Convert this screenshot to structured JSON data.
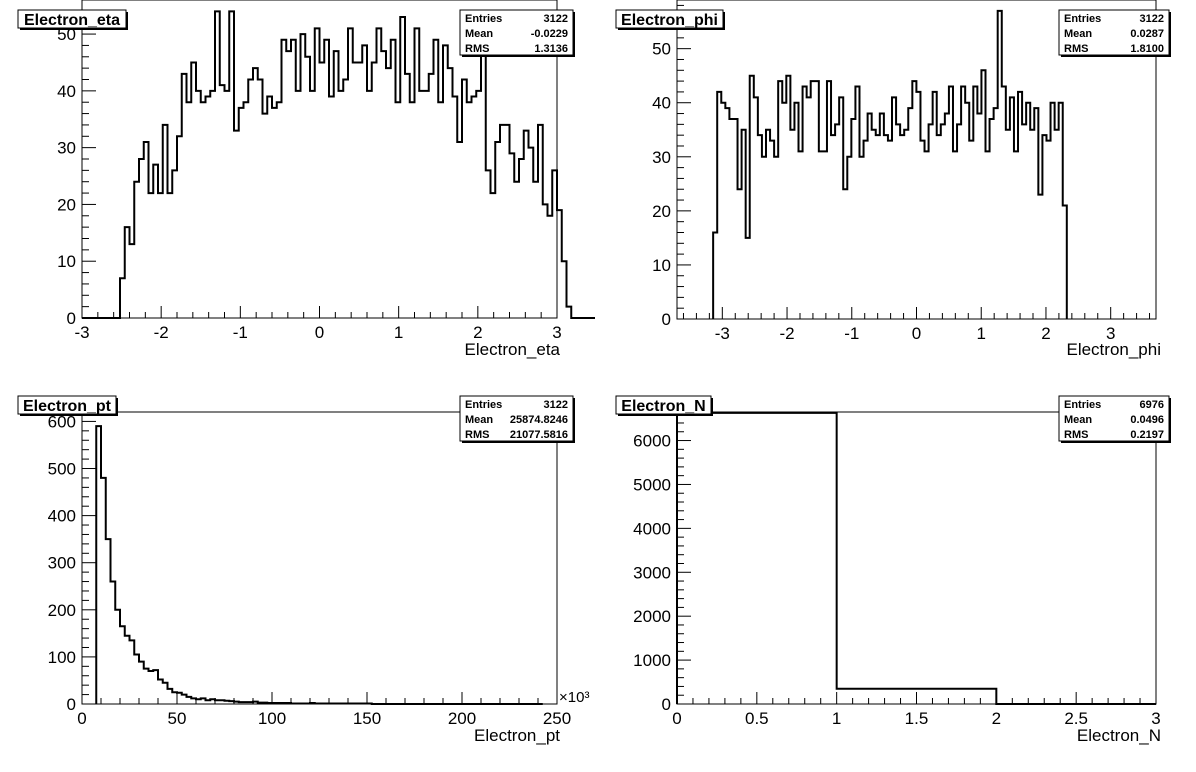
{
  "chart_data": [
    {
      "type": "bar",
      "title": "Electron_eta",
      "xlabel": "Electron_eta",
      "xlim": [
        -3,
        3
      ],
      "ylim": [
        0,
        56
      ],
      "xticks": [
        -3,
        -2,
        -1,
        0,
        1,
        2,
        3
      ],
      "yticks": [
        0,
        10,
        20,
        30,
        40,
        50
      ],
      "stats": [
        [
          "Entries",
          "3122"
        ],
        [
          "Mean",
          "-0.0229"
        ],
        [
          "RMS",
          "1.3136"
        ]
      ],
      "bin_start": -3,
      "bin_width": 0.06,
      "values": [
        0,
        0,
        0,
        0,
        0,
        0,
        0,
        0,
        7,
        16,
        13,
        24,
        28,
        31,
        22,
        27,
        22,
        34,
        22,
        26,
        32,
        43,
        38,
        45,
        40,
        38,
        39,
        40,
        54,
        41,
        40,
        54,
        33,
        37,
        38,
        42,
        44,
        42,
        36,
        39,
        37,
        38,
        49,
        47,
        49,
        40,
        50,
        46,
        40,
        51,
        45,
        49,
        39,
        47,
        40,
        42,
        51,
        45,
        45,
        48,
        40,
        45,
        51,
        47,
        44,
        49,
        38,
        53,
        43,
        38,
        51,
        40,
        40,
        43,
        49,
        38,
        48,
        44,
        39,
        31,
        42,
        38,
        39,
        40,
        51,
        26,
        22,
        31,
        34,
        34,
        29,
        24,
        28,
        33,
        30,
        24,
        34,
        20,
        18,
        26,
        19,
        10,
        2,
        0,
        0,
        0,
        0,
        0
      ]
    },
    {
      "type": "bar",
      "title": "Electron_phi",
      "xlabel": "Electron_phi",
      "xlim": [
        -3.7,
        3.7
      ],
      "ylim": [
        0,
        59
      ],
      "xticks": [
        -3,
        -2,
        -1,
        0,
        1,
        2,
        3
      ],
      "yticks": [
        0,
        10,
        20,
        30,
        40,
        50
      ],
      "stats": [
        [
          "Entries",
          "3122"
        ],
        [
          "Mean",
          "0.0287"
        ],
        [
          "RMS",
          "1.8100"
        ]
      ],
      "bin_start": -3.1416,
      "bin_width": 0.0628,
      "values": [
        16,
        42,
        40,
        39,
        37,
        37,
        24,
        35,
        15,
        45,
        41,
        34,
        30,
        35,
        33,
        30,
        44,
        40,
        45,
        35,
        40,
        31,
        43,
        41,
        44,
        44,
        31,
        31,
        44,
        34,
        36,
        41,
        24,
        30,
        37,
        43,
        30,
        33,
        38,
        35,
        34,
        38,
        34,
        33,
        41,
        36,
        34,
        35,
        39,
        44,
        42,
        33,
        31,
        36,
        42,
        34,
        36,
        38,
        43,
        31,
        36,
        43,
        40,
        33,
        43,
        38,
        46,
        31,
        37,
        39,
        57,
        43,
        35,
        41,
        31,
        42,
        36,
        40,
        35,
        39,
        23,
        34,
        33,
        40,
        35,
        40,
        21
      ]
    },
    {
      "type": "bar",
      "title": "Electron_pt",
      "xlabel": "Electron_pt",
      "x_multiplier_label": "×10³",
      "xlim": [
        0,
        250
      ],
      "ylim": [
        0,
        620
      ],
      "xticks": [
        0,
        50,
        100,
        150,
        200,
        250
      ],
      "yticks": [
        0,
        100,
        200,
        300,
        400,
        500,
        600
      ],
      "stats": [
        [
          "Entries",
          "3122"
        ],
        [
          "Mean",
          "25874.8246"
        ],
        [
          "RMS",
          "21077.5816"
        ]
      ],
      "bin_start": 7.5,
      "bin_width": 2.5,
      "values": [
        590,
        480,
        350,
        260,
        200,
        165,
        145,
        135,
        105,
        90,
        75,
        70,
        72,
        52,
        45,
        32,
        25,
        24,
        20,
        15,
        12,
        10,
        12,
        8,
        10,
        8,
        8,
        7,
        6,
        5,
        4,
        4,
        4,
        5,
        3,
        3,
        2,
        2,
        2,
        2,
        2,
        1,
        1,
        1,
        1,
        2,
        1,
        1,
        1,
        1,
        1,
        1,
        1,
        1,
        1,
        1,
        1,
        1,
        0,
        0,
        0,
        0,
        0,
        0,
        0,
        0,
        0,
        0,
        0,
        0,
        0,
        0,
        0,
        0,
        0,
        0,
        0,
        0,
        0,
        0,
        0,
        0,
        0,
        0,
        0,
        0,
        0,
        0,
        0,
        0,
        0,
        0,
        0,
        0
      ]
    },
    {
      "type": "bar",
      "title": "Electron_N",
      "xlabel": "Electron_N",
      "xlim": [
        0,
        3
      ],
      "ylim": [
        0,
        6650
      ],
      "xticks": [
        0,
        0.5,
        1,
        1.5,
        2,
        2.5,
        3
      ],
      "xtick_labels": [
        "0",
        "0.5",
        "1",
        "1.5",
        "2",
        "2.5",
        "3"
      ],
      "yticks": [
        0,
        1000,
        2000,
        3000,
        4000,
        5000,
        6000
      ],
      "stats": [
        [
          "Entries",
          "6976"
        ],
        [
          "Mean",
          "0.0496"
        ],
        [
          "RMS",
          "0.2197"
        ]
      ],
      "bin_start": 0,
      "bin_width": 1,
      "values": [
        6630,
        346,
        0
      ]
    }
  ]
}
